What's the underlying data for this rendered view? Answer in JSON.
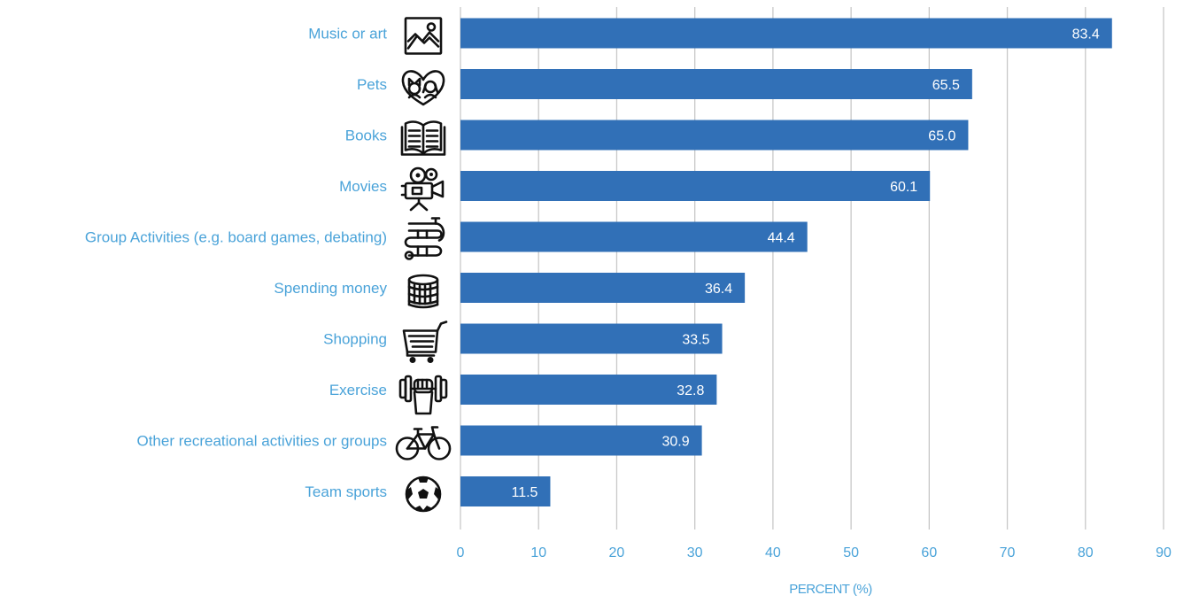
{
  "chart_data": {
    "type": "bar",
    "orientation": "horizontal",
    "categories": [
      "Music or art",
      "Pets",
      "Books",
      "Movies",
      "Group Activities (e.g. board games, debating)",
      "Spending money",
      "Shopping",
      "Exercise",
      "Other recreational activities or groups",
      "Team sports"
    ],
    "values": [
      83.4,
      65.5,
      65.0,
      60.1,
      44.4,
      36.4,
      33.5,
      32.8,
      30.9,
      11.5
    ],
    "value_labels": [
      "83.4",
      "65.5",
      "65.0",
      "60.1",
      "44.4",
      "36.4",
      "33.5",
      "32.8",
      "30.9",
      "11.5"
    ],
    "icons": [
      "picture-icon",
      "pets-icon",
      "book-icon",
      "movie-camera-icon",
      "board-game-icon",
      "coins-icon",
      "shopping-cart-icon",
      "dumbbell-icon",
      "bicycle-icon",
      "soccer-ball-icon"
    ],
    "xlabel": "PERCENT (%)",
    "ylabel": "",
    "title": "",
    "xlim": [
      0,
      90
    ],
    "xticks": [
      0,
      10,
      20,
      30,
      40,
      50,
      60,
      70,
      80,
      90
    ],
    "grid": true,
    "legend": "none",
    "colors": {
      "bar": "#3170b7",
      "label": "#4aa3d9",
      "grid": "#c8c8c8",
      "data_label": "#ffffff"
    }
  }
}
